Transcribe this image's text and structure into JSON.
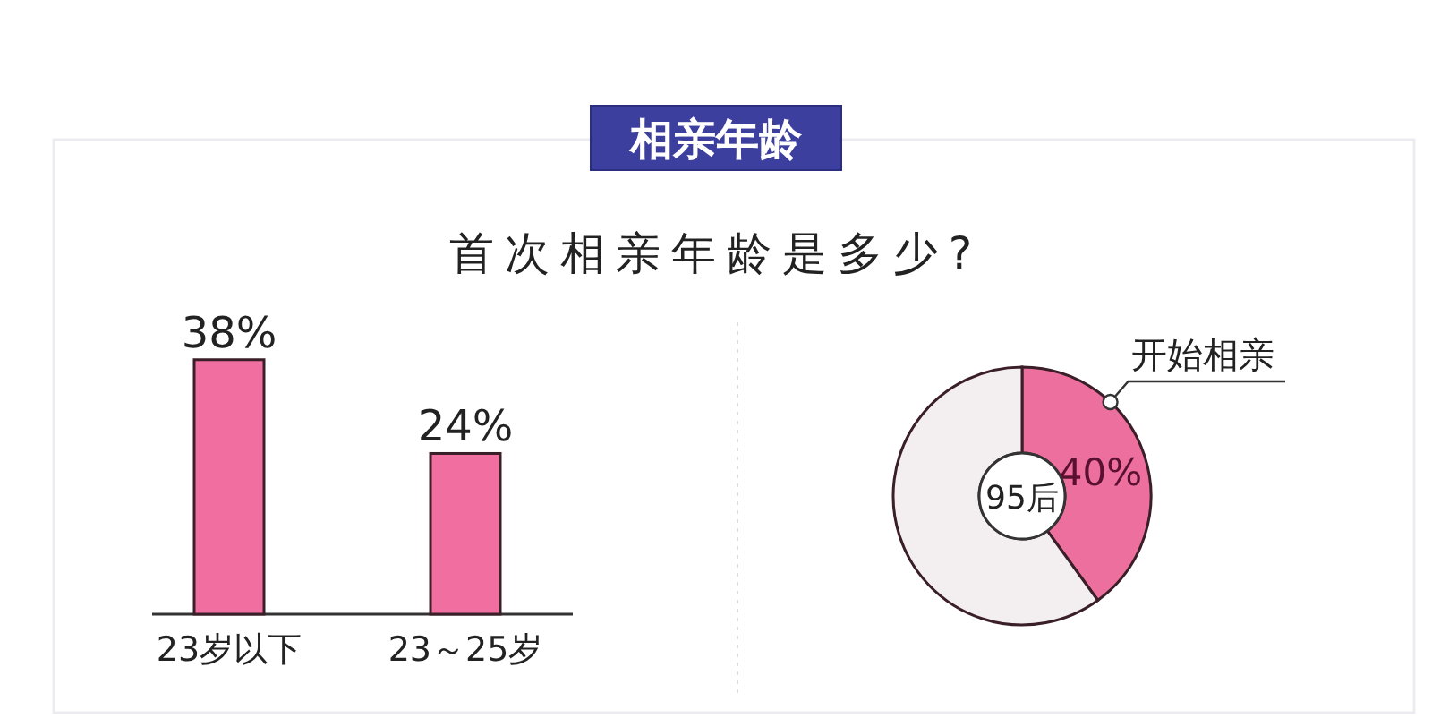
{
  "chart_data": [
    {
      "type": "other",
      "title": "相亲年龄",
      "subtitle": "首次相亲年龄是多少?"
    },
    {
      "type": "bar",
      "categories": [
        "23岁以下",
        "23～25岁"
      ],
      "values": [
        38,
        24
      ],
      "value_labels": [
        "38%",
        "24%"
      ],
      "color": "#f06fa0"
    },
    {
      "type": "donut",
      "categories": [
        "开始相亲",
        null
      ],
      "values": [
        40,
        60
      ],
      "colors": [
        "#ec6f9e",
        "#f3eef0"
      ],
      "value_labels": [
        "40%",
        null
      ],
      "annotations": [
        "95后"
      ]
    }
  ]
}
